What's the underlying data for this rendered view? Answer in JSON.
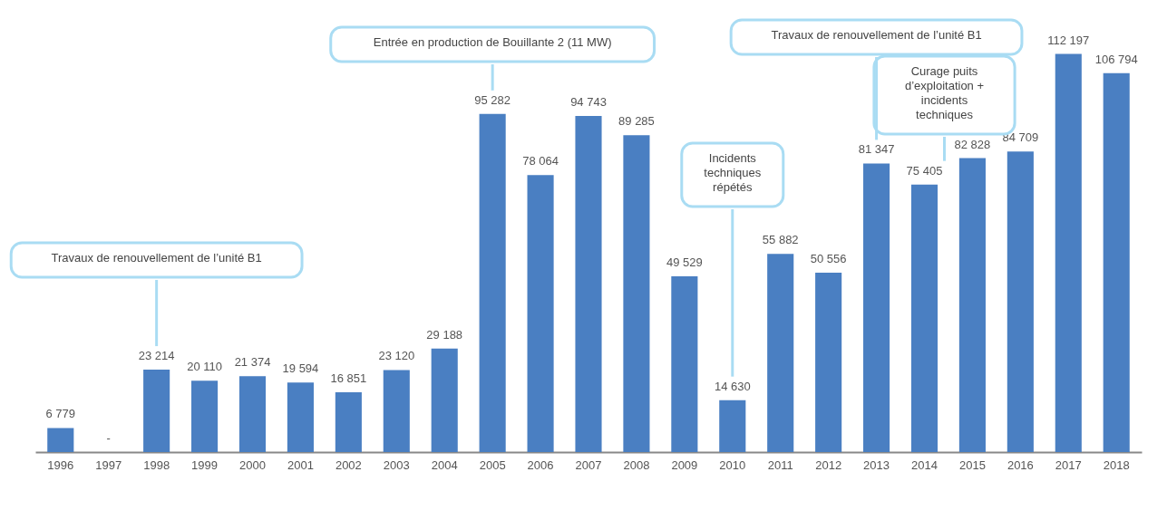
{
  "chart_data": {
    "type": "bar",
    "categories": [
      "1996",
      "1997",
      "1998",
      "1999",
      "2000",
      "2001",
      "2002",
      "2003",
      "2004",
      "2005",
      "2006",
      "2007",
      "2008",
      "2009",
      "2010",
      "2011",
      "2012",
      "2013",
      "2014",
      "2015",
      "2016",
      "2017",
      "2018"
    ],
    "values": [
      6779,
      null,
      23214,
      20110,
      21374,
      19594,
      16851,
      23120,
      29188,
      95282,
      78064,
      94743,
      89285,
      49529,
      14630,
      55882,
      50556,
      81347,
      75405,
      82828,
      84709,
      112197,
      106794
    ],
    "value_labels": [
      "6 779",
      "-",
      "23 214",
      "20 110",
      "21 374",
      "19 594",
      "16 851",
      "23 120",
      "29 188",
      "95 282",
      "78 064",
      "94 743",
      "89 285",
      "49 529",
      "14 630",
      "55 882",
      "50 556",
      "81 347",
      "75 405",
      "82 828",
      "84 709",
      "112 197",
      "106 794"
    ],
    "color": "#4a7fc2",
    "ylim": [
      0,
      120000
    ],
    "grid": false,
    "annotations": [
      "Travaux de renouvellement de l’unité B1",
      "Entrée en production de Bouillante 2 (11 MW)",
      "Incidents\ntechniques\nrépétés",
      "Travaux de renouvellement de l’unité B1",
      "Curage puits\nd’exploitation +\nincidents\ntechniques"
    ]
  }
}
